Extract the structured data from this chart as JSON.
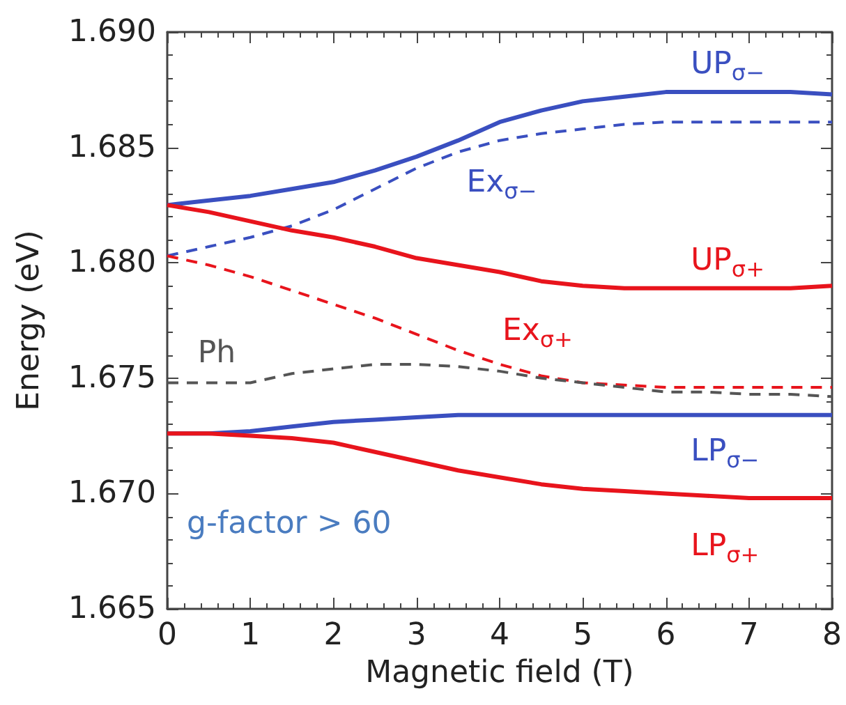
{
  "chart_data": {
    "type": "line",
    "xlabel": "Magnetic field (T)",
    "ylabel": "Energy (eV)",
    "x": [
      0,
      0.5,
      1,
      1.5,
      2,
      2.5,
      3,
      3.5,
      4,
      4.5,
      5,
      5.5,
      6,
      6.5,
      7,
      7.5,
      8
    ],
    "series": [
      {
        "name": "UP$_{σ−}$",
        "color": "#3a4fc0",
        "line_style": "solid",
        "values": [
          1.6825,
          1.6827,
          1.6829,
          1.6832,
          1.6835,
          1.684,
          1.6846,
          1.6853,
          1.6861,
          1.6866,
          1.687,
          1.6872,
          1.6874,
          1.6874,
          1.6874,
          1.6874,
          1.6873
        ]
      },
      {
        "name": "Ex$_{σ−}$",
        "color": "#3a4fc0",
        "line_style": "dashed",
        "values": [
          1.6803,
          1.6807,
          1.6811,
          1.6816,
          1.6823,
          1.6832,
          1.6841,
          1.6848,
          1.6853,
          1.6856,
          1.6858,
          1.686,
          1.6861,
          1.6861,
          1.6861,
          1.6861,
          1.6861
        ]
      },
      {
        "name": "UP$_{σ+}$",
        "color": "#e8141c",
        "line_style": "solid",
        "values": [
          1.6825,
          1.6822,
          1.6818,
          1.6814,
          1.6811,
          1.6807,
          1.6802,
          1.6799,
          1.6796,
          1.6792,
          1.679,
          1.6789,
          1.6789,
          1.6789,
          1.6789,
          1.6789,
          1.679
        ]
      },
      {
        "name": "Ex$_{σ+}$",
        "color": "#e8141c",
        "line_style": "dashed",
        "values": [
          1.6803,
          1.6799,
          1.6794,
          1.6788,
          1.6782,
          1.6776,
          1.6769,
          1.6762,
          1.6756,
          1.6751,
          1.6748,
          1.6747,
          1.6746,
          1.6746,
          1.6746,
          1.6746,
          1.6746
        ]
      },
      {
        "name": "Ph",
        "color": "#555555",
        "line_style": "dashed",
        "values": [
          1.6748,
          1.6748,
          1.6748,
          1.6752,
          1.6754,
          1.6756,
          1.6756,
          1.6755,
          1.6753,
          1.675,
          1.6748,
          1.6746,
          1.6744,
          1.6744,
          1.6743,
          1.6743,
          1.6742
        ]
      },
      {
        "name": "LP$_{σ−}$",
        "color": "#3a4fc0",
        "line_style": "solid",
        "values": [
          1.6726,
          1.6726,
          1.6727,
          1.6729,
          1.6731,
          1.6732,
          1.6733,
          1.6734,
          1.6734,
          1.6734,
          1.6734,
          1.6734,
          1.6734,
          1.6734,
          1.6734,
          1.6734,
          1.6734
        ]
      },
      {
        "name": "LP$_{σ+}$",
        "color": "#e8141c",
        "line_style": "solid",
        "values": [
          1.6726,
          1.6726,
          1.6725,
          1.6724,
          1.6722,
          1.6718,
          1.6714,
          1.671,
          1.6707,
          1.6704,
          1.6702,
          1.6701,
          1.67,
          1.6699,
          1.6698,
          1.6698,
          1.6698
        ]
      }
    ],
    "annotations": [
      "g-factor > 60"
    ],
    "xlim": [
      0,
      8
    ],
    "xticks": [
      0,
      1,
      2,
      3,
      4,
      5,
      6,
      7,
      8
    ],
    "ylim": [
      1.665,
      1.69
    ],
    "yticks": [
      {
        "value": 1.665,
        "label": "1.665"
      },
      {
        "value": 1.67,
        "label": "1.670"
      },
      {
        "value": 1.675,
        "label": "1.675"
      },
      {
        "value": 1.68,
        "label": "1.680"
      },
      {
        "value": 1.685,
        "label": "1.685"
      },
      {
        "value": 1.69,
        "label": "1.690"
      }
    ],
    "marker": "none",
    "grid": false
  }
}
